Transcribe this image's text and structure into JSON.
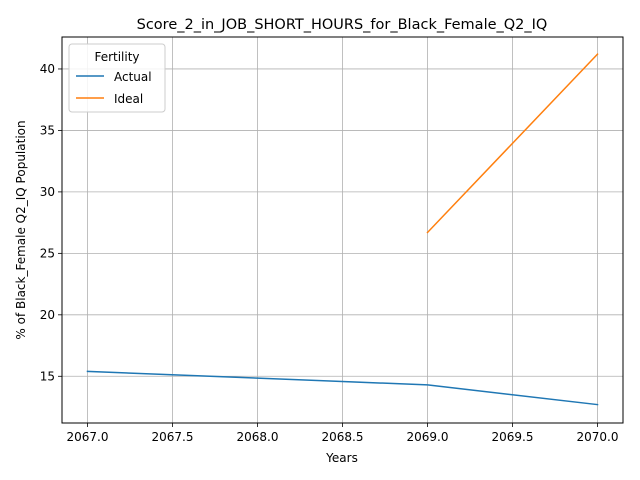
{
  "chart_data": {
    "type": "line",
    "title": "Score_2_in_JOB_SHORT_HOURS_for_Black_Female_Q2_IQ",
    "xlabel": "Years",
    "ylabel": "% of Black_Female Q2_IQ Population",
    "xlim": [
      2066.85,
      2070.15
    ],
    "ylim": [
      11.2,
      42.6
    ],
    "xticks": [
      "2067.0",
      "2067.5",
      "2068.0",
      "2068.5",
      "2069.0",
      "2069.5",
      "2070.0"
    ],
    "yticks": [
      "15",
      "20",
      "25",
      "30",
      "35",
      "40"
    ],
    "grid": true,
    "legend": {
      "title": "Fertility",
      "placement": "top-left"
    },
    "series": [
      {
        "name": "Actual",
        "color": "#1f77b4",
        "x": [
          2067,
          2068,
          2069,
          2070
        ],
        "y": [
          15.4,
          14.85,
          14.3,
          12.7
        ]
      },
      {
        "name": "Ideal",
        "color": "#ff7f0e",
        "x": [
          2069,
          2070
        ],
        "y": [
          26.7,
          41.2
        ]
      }
    ]
  }
}
